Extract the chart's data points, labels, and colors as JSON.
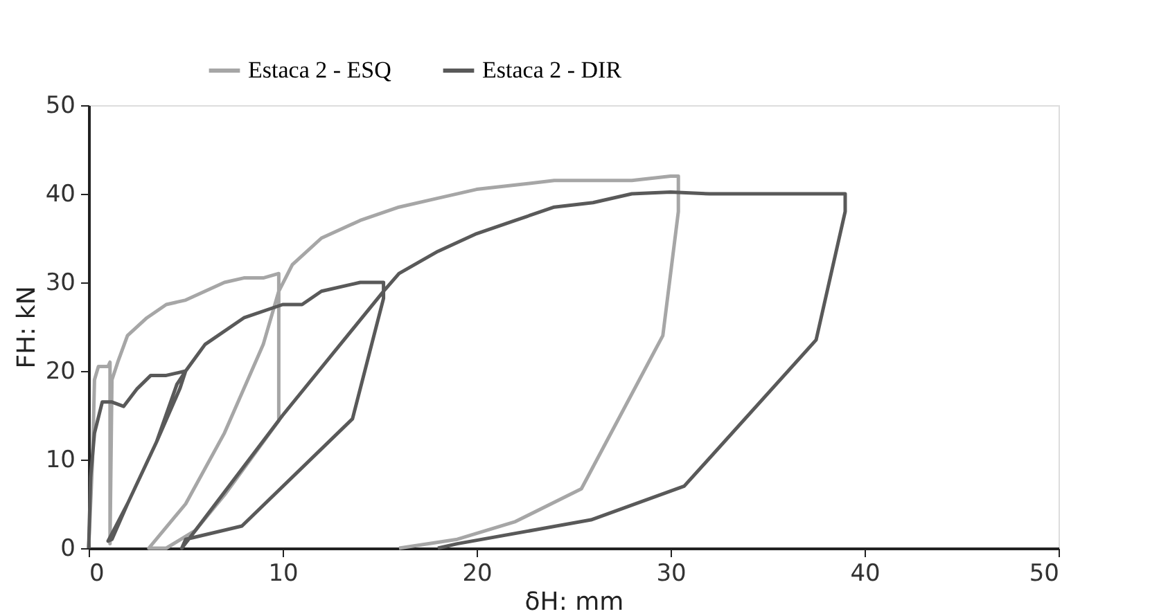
{
  "chart_data": {
    "type": "line",
    "xlabel": "δH: mm",
    "ylabel": "FH: kN",
    "xlim": [
      0,
      50
    ],
    "ylim": [
      0,
      50
    ],
    "xticks": [
      0,
      10,
      20,
      30,
      40,
      50
    ],
    "yticks": [
      0,
      10,
      20,
      30,
      40,
      50
    ],
    "grid": false,
    "legend": "top",
    "line_style": "solid",
    "marker": "none",
    "series": [
      {
        "name": "Estaca 2 - ESQ",
        "color": "#a6a6a6",
        "x": [
          0,
          0.2,
          0.3,
          0.5,
          1.0,
          1.1,
          1.1,
          1.2,
          1.5,
          2,
          3,
          4,
          5,
          6,
          7,
          8,
          9,
          9.8,
          9.8,
          7,
          5.5,
          4,
          3.1,
          5,
          7,
          9,
          9.8,
          10.5,
          12,
          14,
          16,
          18,
          20,
          22,
          24,
          26,
          28,
          30,
          30.4,
          30.4,
          29.6,
          25.4,
          22,
          19,
          16
        ],
        "values": [
          0,
          10,
          19,
          20.5,
          20.5,
          21,
          0.5,
          19,
          21,
          24,
          26,
          27.5,
          28,
          29,
          30,
          30.5,
          30.5,
          31,
          14.4,
          6,
          2,
          0,
          0,
          5,
          13,
          23,
          29,
          32,
          35,
          37,
          38.5,
          39.5,
          40.5,
          41,
          41.5,
          41.5,
          41.5,
          42,
          42,
          38,
          24,
          6.7,
          3,
          1,
          0
        ]
      },
      {
        "name": "Estaca 2 - DIR",
        "color": "#595959",
        "x": [
          0,
          0.1,
          0.3,
          0.7,
          1.2,
          1.8,
          2.5,
          3.2,
          4,
          5,
          4.7,
          3.5,
          2,
          1.2,
          1,
          2,
          3.5,
          4.55,
          5,
          6,
          8,
          10,
          11,
          12,
          14,
          15.2,
          15.2,
          13.6,
          7.9,
          5,
          4.8,
          5.5,
          10,
          15.2,
          16,
          18,
          20,
          22,
          24,
          26,
          28,
          30,
          32,
          34,
          36,
          38,
          39,
          39,
          37.5,
          30.7,
          25.9,
          19,
          18
        ],
        "values": [
          0,
          8,
          13,
          16.5,
          16.5,
          16,
          18,
          19.5,
          19.5,
          20,
          18,
          12,
          5,
          1,
          0.8,
          5,
          12,
          18.5,
          20,
          23,
          26,
          27.5,
          27.5,
          29,
          30,
          30,
          28.2,
          14.6,
          2.5,
          1,
          0,
          2,
          15,
          29,
          31,
          33.5,
          35.5,
          37,
          38.5,
          39,
          40,
          40.2,
          40,
          40,
          40,
          40,
          40,
          38,
          23.5,
          7,
          3.2,
          0.5,
          0
        ]
      }
    ]
  }
}
